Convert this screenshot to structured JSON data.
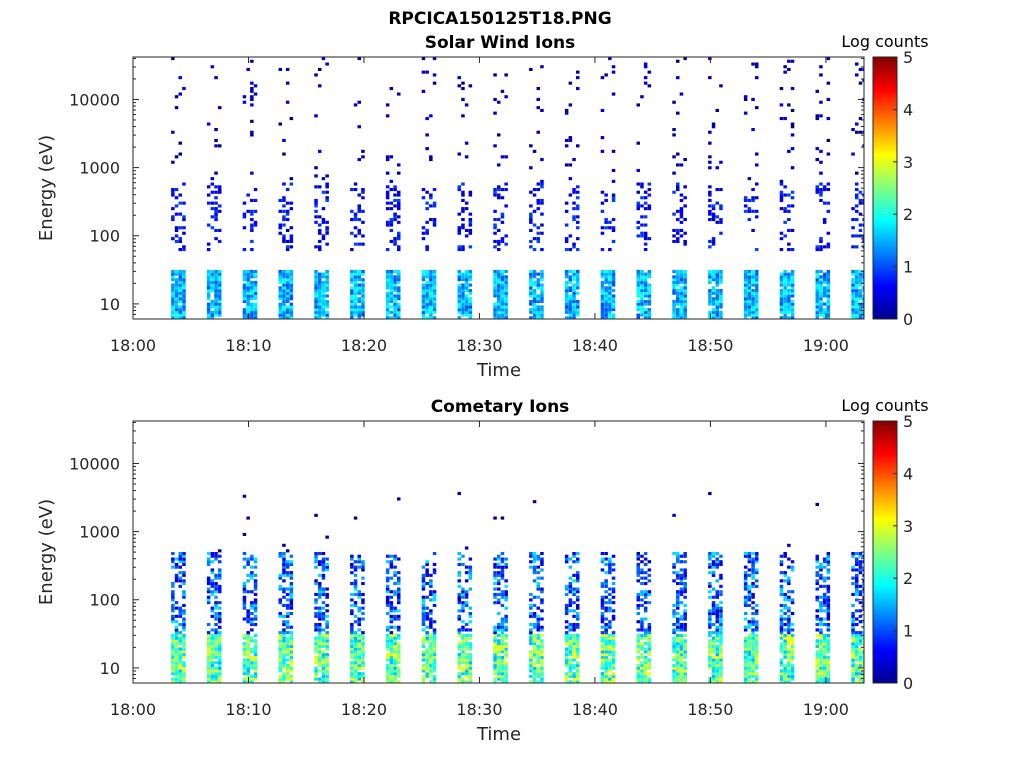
{
  "figure": {
    "title": "RPCICA150125T18.PNG"
  },
  "chart_data": [
    {
      "type": "heatmap",
      "title": "Solar Wind Ions",
      "xlabel": "Time",
      "ylabel": "Energy (eV)",
      "x_ticks": [
        "18:00",
        "18:10",
        "18:20",
        "18:30",
        "18:40",
        "18:50",
        "19:00"
      ],
      "x_range_minutes": [
        0,
        63.3
      ],
      "y_scale": "log",
      "y_ticks": [
        "10",
        "100",
        "1000",
        "10000"
      ],
      "y_range": [
        6,
        42000
      ],
      "colorbar": {
        "label": "Log counts",
        "range": [
          0,
          5
        ],
        "ticks": [
          "0",
          "1",
          "2",
          "3",
          "4",
          "5"
        ],
        "colormap": "jet"
      },
      "sweep_interval_minutes": 3.1,
      "sweep_start_minutes": 3.3,
      "observations": {
        "low_energy_band_eV": [
          6,
          30
        ],
        "low_energy_band_log_counts": [
          1.0,
          2.0
        ],
        "mid_energy_band_eV": [
          60,
          600
        ],
        "mid_energy_band_log_counts": [
          0.3,
          1.0
        ],
        "high_energy_scattered_eV": [
          600,
          40000
        ],
        "high_energy_log_counts": [
          0.0,
          0.5
        ]
      }
    },
    {
      "type": "heatmap",
      "title": "Cometary Ions",
      "xlabel": "Time",
      "ylabel": "Energy (eV)",
      "x_ticks": [
        "18:00",
        "18:10",
        "18:20",
        "18:30",
        "18:40",
        "18:50",
        "19:00"
      ],
      "x_range_minutes": [
        0,
        63.3
      ],
      "y_scale": "log",
      "y_ticks": [
        "10",
        "100",
        "1000",
        "10000"
      ],
      "y_range": [
        6,
        42000
      ],
      "colorbar": {
        "label": "Log counts",
        "range": [
          0,
          5
        ],
        "ticks": [
          "0",
          "1",
          "2",
          "3",
          "4",
          "5"
        ],
        "colormap": "jet"
      },
      "sweep_interval_minutes": 3.1,
      "sweep_start_minutes": 3.3,
      "observations": {
        "low_energy_band_eV": [
          6,
          30
        ],
        "low_energy_band_log_counts": [
          1.5,
          3.1
        ],
        "mid_energy_band_eV": [
          30,
          500
        ],
        "mid_energy_band_log_counts": [
          0.3,
          1.8
        ],
        "high_energy_scattered_eV": [
          500,
          4000
        ],
        "high_energy_log_counts": [
          0.0,
          0.4
        ]
      }
    }
  ]
}
